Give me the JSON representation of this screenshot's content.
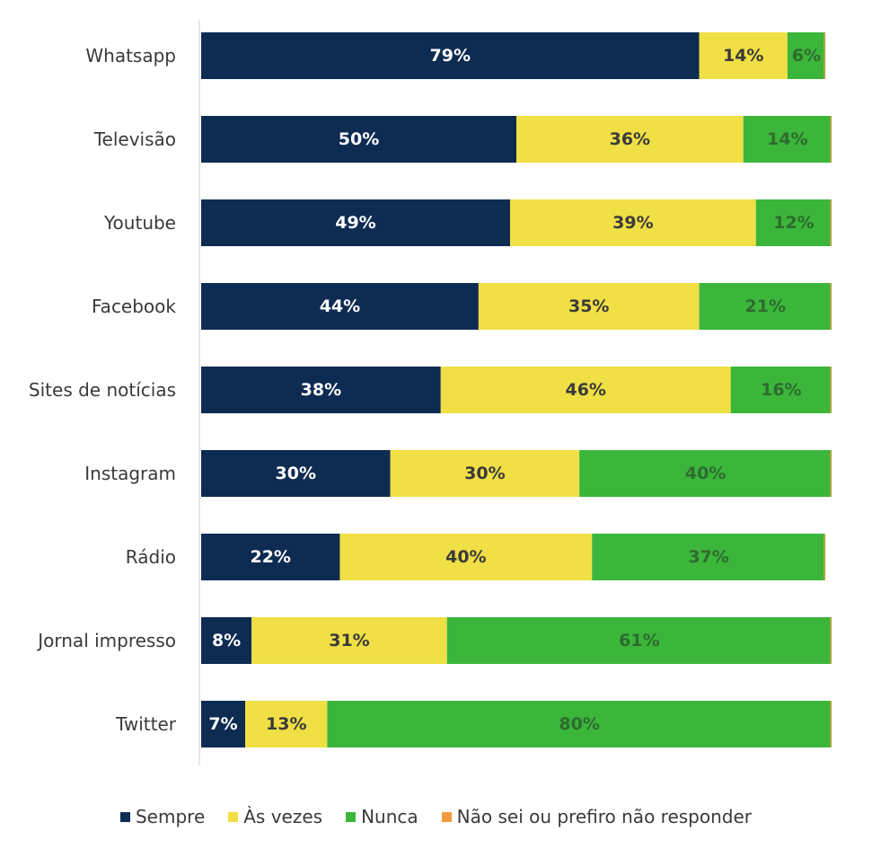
{
  "chart_data": {
    "type": "bar",
    "orientation": "horizontal",
    "stacked": true,
    "categories": [
      "Whatsapp",
      "Televisão",
      "Youtube",
      "Facebook",
      "Sites de notícias",
      "Instagram",
      "Rádio",
      "Jornal impresso",
      "Twitter"
    ],
    "series": [
      {
        "name": "Sempre",
        "color": "#0e2b52",
        "label_color": "#ffffff",
        "values": [
          79,
          50,
          49,
          44,
          38,
          30,
          22,
          8,
          7
        ]
      },
      {
        "name": "Às vezes",
        "color": "#f0df45",
        "label_color": "#3a3a3a",
        "values": [
          14,
          36,
          39,
          35,
          46,
          30,
          40,
          31,
          13
        ]
      },
      {
        "name": "Nunca",
        "color": "#3bb63b",
        "label_color": "#2e6b2e",
        "values": [
          6,
          14,
          12,
          21,
          16,
          40,
          37,
          61,
          80
        ]
      },
      {
        "name": "Não sei ou prefiro não responder",
        "color": "#f39a3c",
        "label_color": "#3a3a3a",
        "values": [
          0,
          0,
          0,
          0,
          0,
          0,
          0,
          0,
          0
        ]
      }
    ],
    "value_suffix": "%",
    "xlim": [
      0,
      100
    ],
    "grid": false,
    "legend_position": "bottom"
  }
}
